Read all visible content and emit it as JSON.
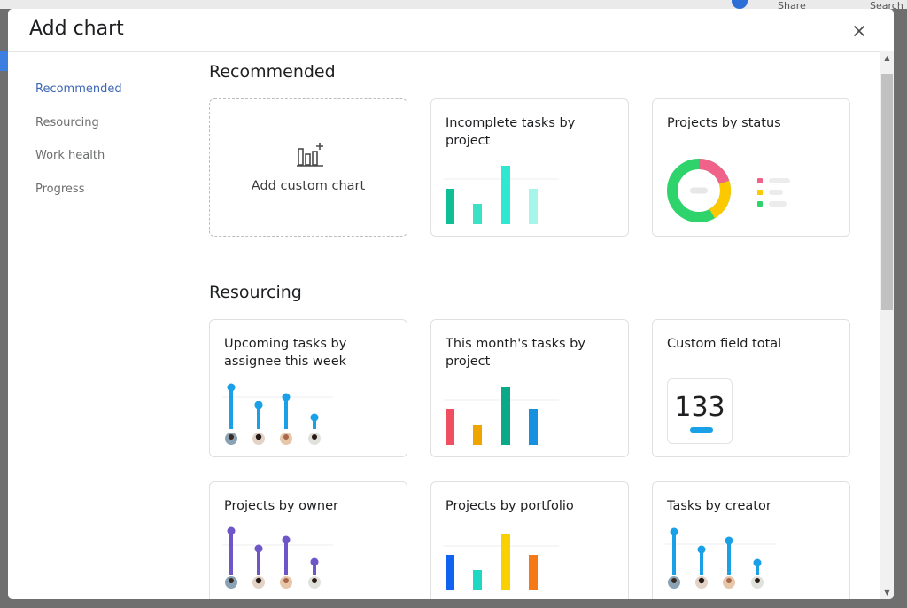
{
  "background": {
    "share_label": "Share",
    "search_label": "Search"
  },
  "modal": {
    "title": "Add chart"
  },
  "sidebar": {
    "items": [
      {
        "label": "Recommended",
        "active": true
      },
      {
        "label": "Resourcing",
        "active": false
      },
      {
        "label": "Work health",
        "active": false
      },
      {
        "label": "Progress",
        "active": false
      }
    ]
  },
  "sections": {
    "recommended": {
      "title": "Recommended",
      "custom_card_label": "Add custom chart",
      "cards": [
        {
          "title": "Incomplete tasks by project"
        },
        {
          "title": "Projects by status"
        }
      ]
    },
    "resourcing": {
      "title": "Resourcing",
      "cards": [
        {
          "title": "Upcoming tasks by assignee this week"
        },
        {
          "title": "This month's tasks by project"
        },
        {
          "title": "Custom field total",
          "value": "133"
        },
        {
          "title": "Projects by owner"
        },
        {
          "title": "Projects by portfolio"
        },
        {
          "title": "Tasks by creator"
        }
      ]
    }
  },
  "colors": {
    "active_nav": "#3d66b3",
    "teal_series": [
      "#0fbf95",
      "#3ce0c4",
      "#2fe8d0",
      "#a6f5ea"
    ],
    "status_donut": [
      "#f0628a",
      "#fcc900",
      "#2ed46b"
    ],
    "month_series": [
      "#f04e61",
      "#f0a400",
      "#0aa987",
      "#1890e0"
    ],
    "lollipop_blue": "#1aa0e6",
    "lollipop_purple": "#6e55c8",
    "portfolio_series": [
      "#1063f0",
      "#1ed8c4",
      "#fad000",
      "#f57a17"
    ]
  }
}
